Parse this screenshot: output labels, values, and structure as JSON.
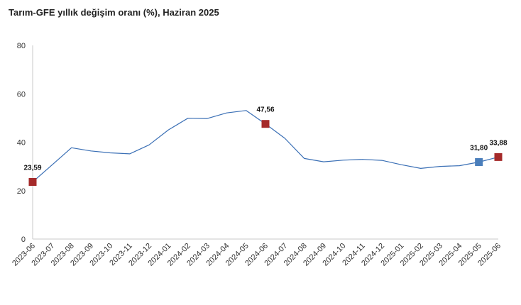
{
  "chart_data": {
    "type": "line",
    "title": "Tarım-GFE yıllık değişim oranı (%), Haziran 2025",
    "xlabel": "",
    "ylabel": "",
    "ylim": [
      0,
      80
    ],
    "y_ticks": [
      "0",
      "20",
      "40",
      "60",
      "80"
    ],
    "y_tick_values": [
      0,
      20,
      40,
      60,
      80
    ],
    "grid": false,
    "legend": "none",
    "categories": [
      "2023-06",
      "2023-07",
      "2023-08",
      "2023-09",
      "2023-10",
      "2023-11",
      "2023-12",
      "2024-01",
      "2024-02",
      "2024-03",
      "2024-04",
      "2024-05",
      "2024-06",
      "2024-07",
      "2024-08",
      "2024-09",
      "2024-10",
      "2024-11",
      "2024-12",
      "2025-01",
      "2025-02",
      "2025-03",
      "2025-04",
      "2025-05",
      "2025-06"
    ],
    "series": [
      {
        "values": [
          23.59,
          30.6,
          37.7,
          36.4,
          35.6,
          35.2,
          38.9,
          45.1,
          49.9,
          49.8,
          52.1,
          53.1,
          47.56,
          41.6,
          33.3,
          31.9,
          32.6,
          32.9,
          32.5,
          30.7,
          29.2,
          30.0,
          30.3,
          31.8,
          33.88
        ],
        "color": "#3a6fb5"
      }
    ],
    "highlighted_points": [
      {
        "index": 0,
        "label": "23,59",
        "marker_color": "#a52a2a"
      },
      {
        "index": 12,
        "label": "47,56",
        "marker_color": "#a52a2a"
      },
      {
        "index": 23,
        "label": "31,80",
        "marker_color": "#4a7ebb"
      },
      {
        "index": 24,
        "label": "33,88",
        "marker_color": "#a52a2a"
      }
    ],
    "axis_color": "#c8c8c8"
  }
}
